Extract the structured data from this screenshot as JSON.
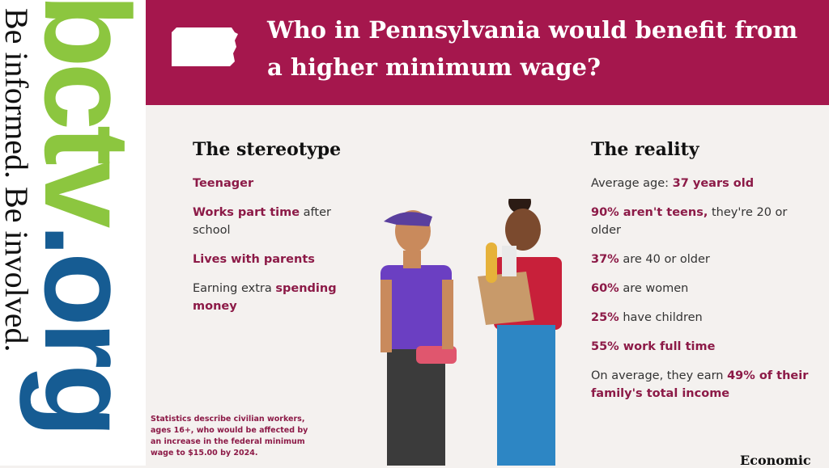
{
  "logo": {
    "brand": "bctv",
    "domain": ".org",
    "tagline": "Be informed. Be involved."
  },
  "header": {
    "title": "Who in Pennsylvania would benefit from a higher minimum wage?"
  },
  "stereotype": {
    "heading": "The stereotype",
    "items": [
      [
        {
          "text": "Teenager",
          "bold": true
        }
      ],
      [
        {
          "text": "Works part time",
          "bold": true
        },
        {
          "text": "after school",
          "bold": false
        }
      ],
      [
        {
          "text": "Lives with parents",
          "bold": true
        }
      ],
      [
        {
          "text": "Earning extra",
          "bold": false
        },
        {
          "text": "spending money",
          "bold": true
        }
      ]
    ]
  },
  "reality": {
    "heading": "The reality",
    "items": [
      [
        {
          "text": "Average age:",
          "bold": false
        },
        {
          "text": "37 years old",
          "bold": true
        }
      ],
      [
        {
          "text": "90% aren't teens,",
          "bold": true
        },
        {
          "text": "they're 20 or older",
          "bold": false
        }
      ],
      [
        {
          "text": "37%",
          "bold": true
        },
        {
          "text": "are 40 or older",
          "bold": false
        }
      ],
      [
        {
          "text": "60%",
          "bold": true
        },
        {
          "text": "are women",
          "bold": false
        }
      ],
      [
        {
          "text": "25%",
          "bold": true
        },
        {
          "text": "have children",
          "bold": false
        }
      ],
      [
        {
          "text": "55% work full time",
          "bold": true
        }
      ],
      [
        {
          "text": "On average, they earn",
          "bold": false
        },
        {
          "text": "49% of their family's total income",
          "bold": true
        }
      ]
    ]
  },
  "footnote": "Statistics describe civilian workers, ages 16+, who would be affected by an increase in the federal minimum wage to $15.00 by 2024.",
  "source": "Economic"
}
